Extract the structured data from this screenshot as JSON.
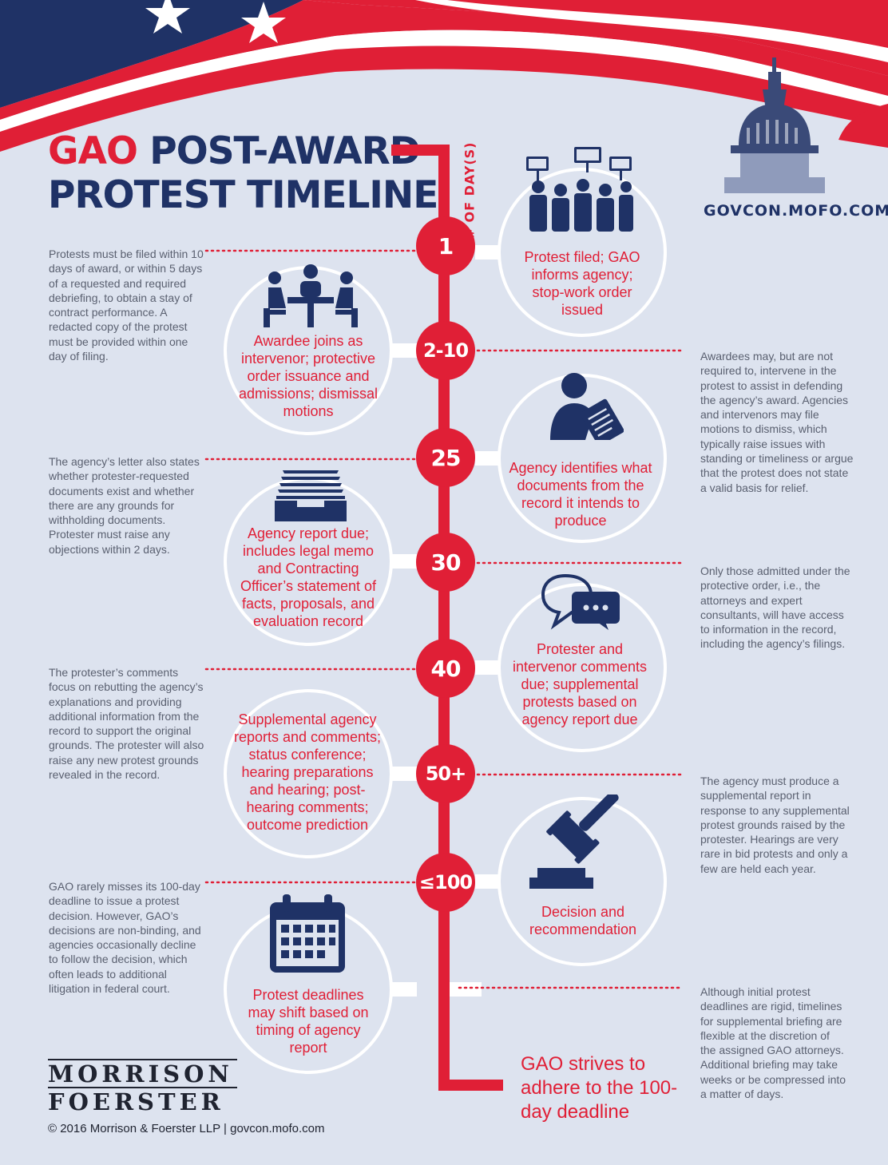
{
  "title": {
    "part1": "GAO",
    "part2": "POST-AWARD",
    "line2": "PROTEST TIMELINE"
  },
  "website": "GOVCON.MOFO.COM",
  "axis_label": "# OF DAY(S)",
  "colors": {
    "red": "#e01f36",
    "navy": "#1f3266",
    "background": "#dde3ef",
    "side_text": "#5a6070"
  },
  "steps": [
    {
      "day": "1",
      "icon": "protest-crowd-icon",
      "text": "Protest filed; GAO informs agency; stop-work order issued"
    },
    {
      "day": "2-10",
      "icon": "meeting-table-icon",
      "text": "Awardee joins as intervenor; protective order issuance and admissions; dismissal motions"
    },
    {
      "day": "25",
      "icon": "person-reviewing-document-icon",
      "text": "Agency identifies what documents from the record it intends to produce"
    },
    {
      "day": "30",
      "icon": "document-tray-icon",
      "text": "Agency report due; includes legal memo and Contracting Officer’s statement of facts, proposals, and evaluation record"
    },
    {
      "day": "40",
      "icon": "speech-bubbles-icon",
      "text": "Protester and intervenor comments due; supplemental protests based on agency report due"
    },
    {
      "day": "50+",
      "icon": "",
      "text": "Supplemental agency reports and comments; status conference; hearing preparations and hearing; post-hearing comments; outcome prediction"
    },
    {
      "day": "≤100",
      "icon": "gavel-icon",
      "text": "Decision and recommendation"
    },
    {
      "day": "",
      "icon": "calendar-icon",
      "text": "Protest deadlines may shift based on timing of agency report"
    }
  ],
  "notes": [
    "Protests must be filed within 10 days of award, or within 5 days of a requested and required debriefing, to obtain a stay of contract performance. A redacted copy of the protest must be provided within one day of filing.",
    "Awardees may, but are not required to, intervene in the protest to assist in defending the agency’s award. Agencies and intervenors may file motions to dismiss, which typically raise issues with standing or timeliness or argue that the protest does not state a valid basis for relief.",
    "The agency’s letter also states whether protester-requested documents exist and whether there are any grounds for withholding documents. Protester must raise any objections within 2 days.",
    "Only those admitted under the protective order, i.e., the attorneys and expert consultants, will have access to information in the record, including the agency’s filings.",
    "The protester’s comments focus on rebutting the agency’s explanations and providing additional information from the record to support the original grounds. The protester will also raise any new protest grounds revealed in the record.",
    "The agency must produce a supplemental report in response to any supplemental protest grounds raised by the protester.  Hearings are very rare in bid protests and only a few are held each year.",
    "GAO rarely misses its 100-day deadline to issue a protest decision.  However, GAO’s decisions are non-binding, and agencies occasionally decline to follow the decision, which often leads to additional litigation in federal court.",
    "Although initial protest deadlines are rigid, timelines for supplemental briefing are flexible at the discretion of the assigned GAO attorneys. Additional briefing may take weeks or be compressed into a matter of days."
  ],
  "end_note": "GAO strives to adhere to the 100-day deadline",
  "logo": {
    "line1": "MORRISON",
    "line2": "FOERSTER"
  },
  "copyright": "© 2016 Morrison & Foerster LLP  |  govcon.mofo.com"
}
